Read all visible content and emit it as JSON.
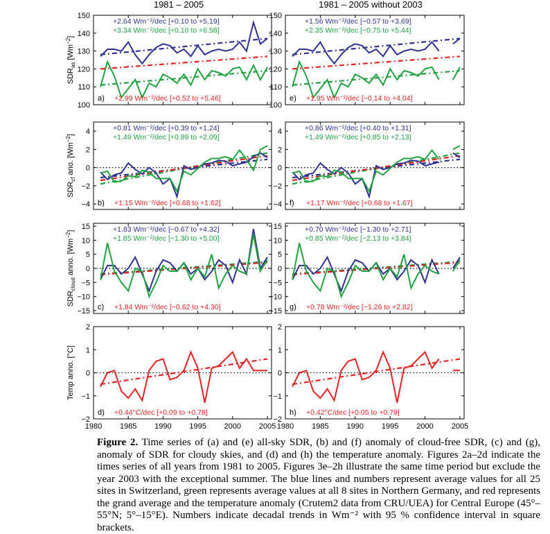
{
  "figure": {
    "columns": [
      {
        "title": "1981 – 2005"
      },
      {
        "title": "1981 – 2005  without 2003"
      }
    ],
    "x_ticks": [
      "1980",
      "1985",
      "1990",
      "1995",
      "2000",
      "2005"
    ],
    "ylabels": [
      {
        "text": "SDR",
        "sub": "as",
        "unit": " [Wm",
        "sup": "−2",
        "close": "]"
      },
      {
        "text": "SDR",
        "sub": "cf",
        "unit": " ano.  [Wm",
        "sup": "−2",
        "close": "]"
      },
      {
        "text": "SDR",
        "sub": "cloud",
        "unit": " anno.  [Wm",
        "sup": "−2",
        "close": "]"
      },
      {
        "text": "Temp anno.  [°C]",
        "sub": "",
        "unit": "",
        "sup": "",
        "close": ""
      }
    ],
    "colors": {
      "blue": "#2e3192",
      "green": "#1fa23f",
      "red": "#e32322"
    }
  },
  "chart_data": [
    {
      "panel": "a",
      "type": "line",
      "ylim": [
        100,
        150
      ],
      "yticks": [
        "100",
        "110",
        "120",
        "130",
        "140",
        "150"
      ],
      "trend_labels": [
        {
          "color": "blue",
          "text": "+2.64 Wm⁻²/dec  [+0.10 to +5.19]"
        },
        {
          "color": "green",
          "text": "+3.34 Wm⁻²/dec  [+0.10 to +6.58]"
        },
        {
          "color": "red",
          "text": "+2.99 Wm⁻²/dec  [+0.52 to +5.46]"
        }
      ]
    },
    {
      "panel": "b",
      "type": "line",
      "ylim": [
        -4,
        5
      ],
      "yticks": [
        "4",
        "2",
        "0",
        "−2",
        "−4"
      ],
      "trend_labels": [
        {
          "color": "blue",
          "text": "+0.81 Wm⁻²/dec  [+0.39 to +1.24]"
        },
        {
          "color": "green",
          "text": "+1.49 Wm⁻²/dec  [+0.89 to +2.09]"
        },
        {
          "color": "red",
          "text": "+1.15 Wm⁻²/dec  [+0.68 to +1.62]"
        }
      ]
    },
    {
      "panel": "c",
      "type": "line",
      "ylim": [
        -15,
        15
      ],
      "yticks": [
        "15",
        "10",
        "5",
        "0",
        "−5",
        "−10",
        "−15"
      ],
      "trend_labels": [
        {
          "color": "blue",
          "text": "+1.83 Wm⁻²/dec  [−0.67 to +4.32]"
        },
        {
          "color": "green",
          "text": "+1.85 Wm⁻²/dec  [−1.30 to +5.00]"
        },
        {
          "color": "red",
          "text": "+1.84 Wm⁻²/dec  [−0.62 to +4.30]"
        }
      ]
    },
    {
      "panel": "d",
      "type": "line",
      "ylim": [
        -2,
        2
      ],
      "yticks": [
        "2",
        "1",
        "0",
        "−1",
        "−2"
      ],
      "trend_labels": [
        {
          "color": "red",
          "text": "+0.44°C/dec  [+0.09 to +0.78]"
        }
      ]
    },
    {
      "panel": "e",
      "type": "line",
      "ylim": [
        100,
        150
      ],
      "yticks": [
        "100",
        "110",
        "120",
        "130",
        "140",
        "150"
      ],
      "trend_labels": [
        {
          "color": "blue",
          "text": "+1.56 Wm⁻²/dec  [−0.57 to +3.69]"
        },
        {
          "color": "green",
          "text": "+2.35 Wm⁻²/dec  [−0.75 to +5.44]"
        },
        {
          "color": "red",
          "text": "+1.95 Wm⁻²/dec  [−0.14 to +4.04]"
        }
      ]
    },
    {
      "panel": "f",
      "type": "line",
      "ylim": [
        -4,
        5
      ],
      "yticks": [
        "4",
        "2",
        "0",
        "−2",
        "−4"
      ],
      "trend_labels": [
        {
          "color": "blue",
          "text": "+0.86 Wm⁻²/dec  [+0.40 to +1.31]"
        },
        {
          "color": "green",
          "text": "+1.49 Wm⁻²/dec  [+0.85 to +2.13]"
        },
        {
          "color": "red",
          "text": "+1.17 Wm⁻²/dec  [+0.68 to +1.67]"
        }
      ]
    },
    {
      "panel": "g",
      "type": "line",
      "ylim": [
        -15,
        15
      ],
      "yticks": [
        "15",
        "10",
        "5",
        "0",
        "−5",
        "−10",
        "−15"
      ],
      "trend_labels": [
        {
          "color": "blue",
          "text": "+0.70 Wm⁻²/dec  [−1.30 to +2.71]"
        },
        {
          "color": "green",
          "text": "+0.85 Wm⁻²/dec  [−2.13 to +3.84]"
        },
        {
          "color": "red",
          "text": "+0.78 Wm⁻²/dec  [−1.26 to +2.82]"
        }
      ]
    },
    {
      "panel": "h",
      "type": "line",
      "ylim": [
        -2,
        2
      ],
      "yticks": [
        "2",
        "1",
        "0",
        "−1",
        "−2"
      ],
      "trend_labels": [
        {
          "color": "red",
          "text": "+0.42°C/dec  [+0.05 to +0.79]"
        }
      ]
    }
  ],
  "series": {
    "years": [
      1981,
      1982,
      1983,
      1984,
      1985,
      1986,
      1987,
      1988,
      1989,
      1990,
      1991,
      1992,
      1993,
      1994,
      1995,
      1996,
      1997,
      1998,
      1999,
      2000,
      2001,
      2002,
      2003,
      2004,
      2005
    ],
    "sdr_as_blue": [
      127,
      131,
      131,
      130,
      135,
      128,
      123,
      128,
      132,
      134,
      133,
      129,
      131,
      127,
      133,
      128,
      130,
      131,
      130,
      131,
      135,
      130,
      146,
      134,
      137
    ],
    "sdr_as_green": [
      110,
      124,
      116,
      104,
      109,
      114,
      104,
      112,
      110,
      117,
      115,
      112,
      117,
      111,
      120,
      114,
      119,
      118,
      116,
      120,
      121,
      114,
      122,
      114,
      121
    ],
    "sdr_cf_blue": [
      -0.5,
      -1.3,
      -0.8,
      -0.6,
      0.5,
      -0.2,
      -0.7,
      0.0,
      -0.6,
      -1.8,
      -1.2,
      -3.2,
      0.2,
      -0.2,
      0.0,
      0.4,
      0.5,
      0.8,
      0.7,
      0.2,
      0.4,
      0.6,
      1.2,
      1.6,
      1.1
    ],
    "sdr_cf_green": [
      -0.6,
      -0.4,
      -1.6,
      -1.5,
      -0.9,
      -1.0,
      -0.3,
      -0.5,
      -1.2,
      -1.2,
      -1.2,
      -2.6,
      -0.4,
      -0.8,
      -0.1,
      0.6,
      1.0,
      1.0,
      1.2,
      0.9,
      1.9,
      0.9,
      -0.3,
      2.0,
      2.4
    ],
    "sdr_cloud_blue": [
      -4,
      1,
      1,
      -2,
      0,
      4,
      -2,
      -8,
      -1,
      3,
      2,
      -1,
      2,
      -2,
      0,
      -4,
      -1,
      3,
      1,
      -5,
      3,
      -2,
      14,
      0,
      4
    ],
    "sdr_cloud_green": [
      -4,
      9,
      -1,
      -5,
      -8,
      0,
      -1,
      -10,
      -5,
      1,
      -1,
      -1,
      2,
      -4,
      0,
      -3,
      5,
      -7,
      -2,
      1,
      -1,
      -2,
      12,
      -1,
      3
    ],
    "temp_red": [
      -0.6,
      0.0,
      0.1,
      -0.8,
      -1.1,
      -0.7,
      -1.2,
      0.1,
      0.5,
      0.6,
      -0.3,
      -0.2,
      0.1,
      0.9,
      0.2,
      -1.3,
      0.2,
      0.3,
      0.6,
      0.9,
      0.2,
      0.6,
      0.1,
      0.1,
      0.1
    ],
    "trend_as_blue": [
      128,
      137
    ],
    "trend_as_green": [
      111,
      119
    ],
    "trend_as_red": [
      120,
      127
    ],
    "trend_cf_blue": [
      -1.1,
      0.9
    ],
    "trend_cf_green": [
      -1.8,
      1.6
    ],
    "trend_cf_red": [
      -1.4,
      1.3
    ],
    "trend_cloud_blue": [
      -2,
      2.4
    ],
    "trend_cloud_green": [
      -2,
      2.4
    ],
    "trend_cloud_red": [
      -2.2,
      2.1
    ],
    "trend_temp_red": [
      -0.5,
      0.6
    ]
  },
  "caption": {
    "label": "Figure 2.",
    "text": "  Time series of (a) and (e) all-sky SDR, (b) and (f) anomaly of cloud-free SDR, (c) and (g), anomaly of SDR for cloudy skies, and (d) and (h) the temperature anomaly. Figures 2a–2d indicate the times series of all years from 1981 to 2005. Figures 3e–2h illustrate the same time period but exclude the year 2003 with the exceptional summer. The blue lines and numbers represent average values for all 25 sites in Switzerland, green represents average values at all 8 sites in Northern Germany, and red represents the grand average and the temperature anomaly (Crutem2 data from CRU/UEA) for Central Europe (45°–55°N; 5°–15°E). Numbers indicate decadal trends in Wm⁻² with 95 % confidence interval in square brackets."
  }
}
